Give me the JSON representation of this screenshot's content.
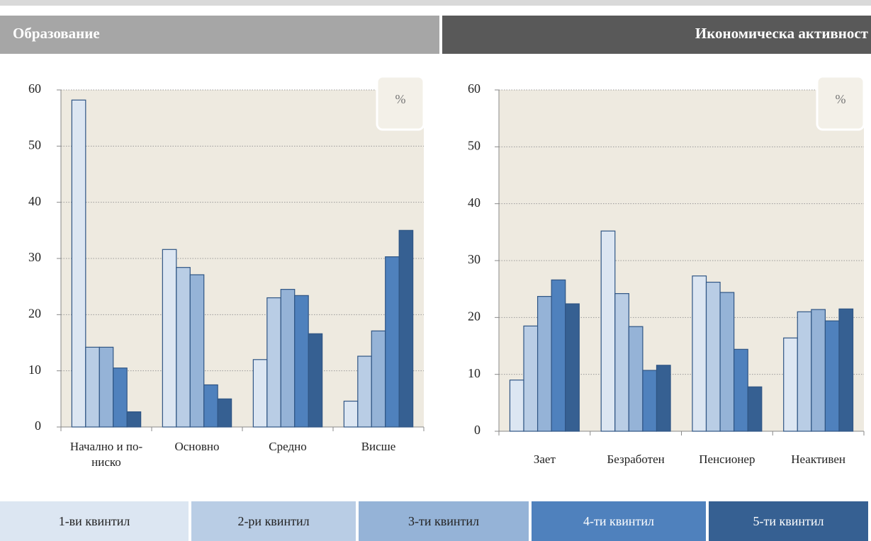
{
  "chart_data": [
    {
      "type": "bar",
      "title": "Образование",
      "annotation": "%",
      "categories": [
        "Начално и по-ниско",
        "Основно",
        "Средно",
        "Висше"
      ],
      "series": [
        {
          "name": "1-ви квинтил",
          "color": "#dce6f2",
          "values": [
            58.2,
            31.6,
            12.0,
            4.6
          ]
        },
        {
          "name": "2-ри квинтил",
          "color": "#b9cde5",
          "values": [
            14.2,
            28.4,
            23.0,
            12.6
          ]
        },
        {
          "name": "3-ти квинтил",
          "color": "#95b3d7",
          "values": [
            14.2,
            27.1,
            24.5,
            17.1
          ]
        },
        {
          "name": "4-ти квинтил",
          "color": "#4f81bd",
          "values": [
            10.5,
            7.5,
            23.4,
            30.3
          ]
        },
        {
          "name": "5-ти квинтил",
          "color": "#366092",
          "values": [
            2.7,
            5.0,
            16.6,
            35.0
          ]
        }
      ],
      "ylim": [
        0,
        60
      ],
      "yticks": [
        0,
        10,
        20,
        30,
        40,
        50,
        60
      ],
      "grid": true
    },
    {
      "type": "bar",
      "title": "Икономическа активност",
      "annotation": "%",
      "categories": [
        "Зает",
        "Безработен",
        "Пенсионер",
        "Неактивен"
      ],
      "series": [
        {
          "values": [
            9.0,
            35.2,
            27.3,
            16.4
          ]
        },
        {
          "values": [
            18.5,
            24.2,
            26.2,
            21.0
          ]
        },
        {
          "values": [
            23.7,
            18.4,
            24.4,
            21.4
          ]
        },
        {
          "values": [
            26.6,
            10.7,
            14.4,
            19.4
          ]
        },
        {
          "values": [
            22.4,
            11.6,
            7.8,
            21.5
          ]
        }
      ],
      "ylim": [
        0,
        60
      ],
      "yticks": [
        0,
        10,
        20,
        30,
        40,
        50,
        60
      ],
      "grid": true
    }
  ]
}
